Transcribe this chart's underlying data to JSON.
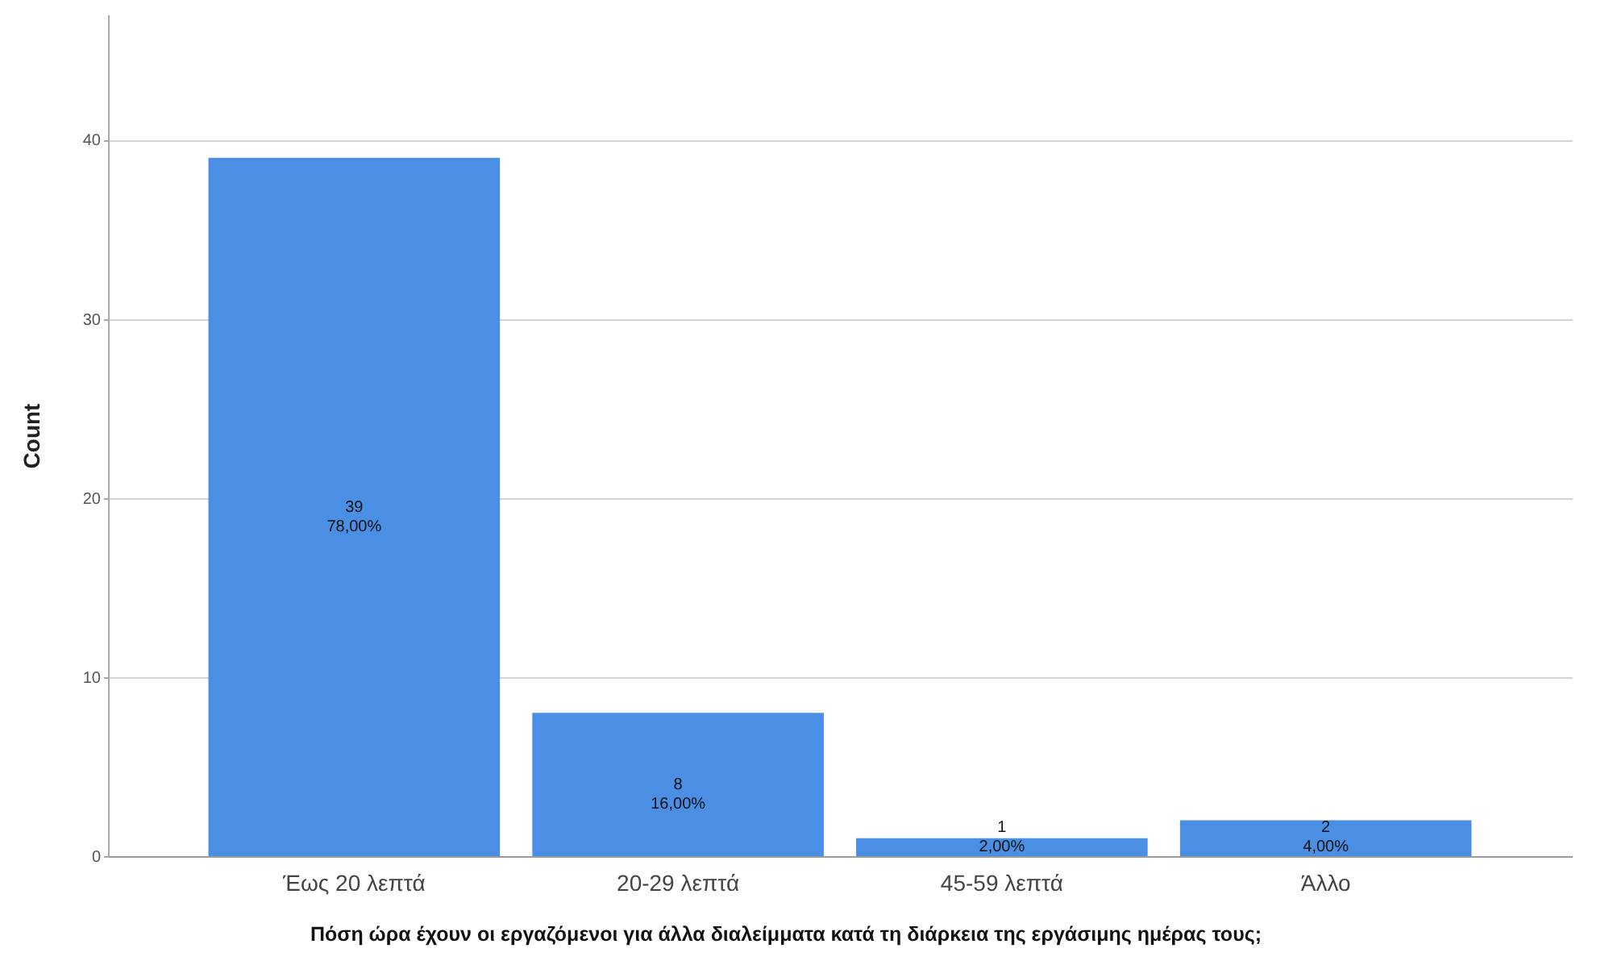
{
  "chart_data": {
    "type": "bar",
    "xlabel": "Πόση ώρα έχουν οι εργαζόμενοι για άλλα διαλείμματα κατά τη διάρκεια της εργάσιμης ημέρας τους;",
    "ylabel": "Count",
    "categories": [
      "Έως 20 λεπτά",
      "20-29 λεπτά",
      "45-59 λεπτά",
      "Άλλο"
    ],
    "values": [
      39,
      8,
      1,
      2
    ],
    "color": "#4a8fe3",
    "value_labels": [
      "39\n78,00%",
      "8\n16,00%",
      "1\n2,00%",
      "2\n4,00%"
    ],
    "ylim": [
      0,
      47
    ],
    "yticks": [
      0,
      10,
      20,
      30,
      40
    ],
    "grid": "y"
  }
}
